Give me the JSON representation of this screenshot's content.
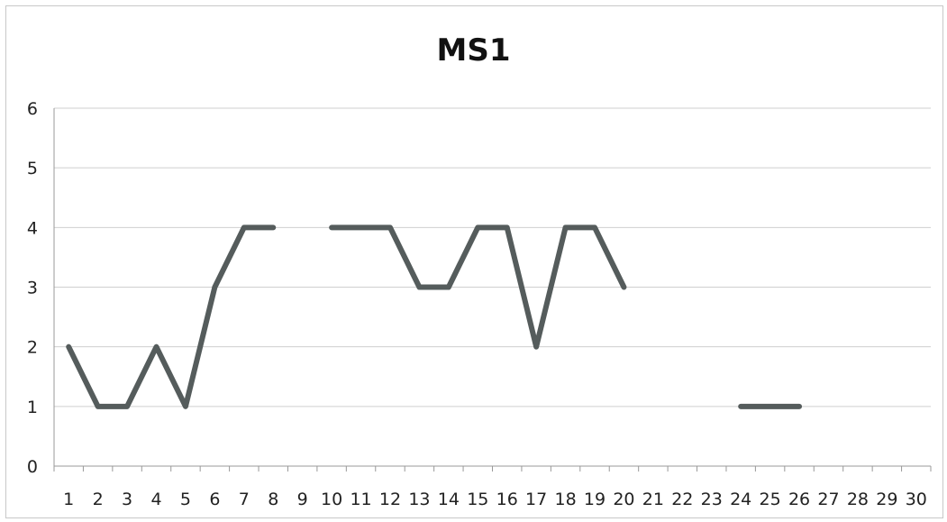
{
  "chart_data": {
    "type": "line",
    "title": "MS1",
    "xlabel": "",
    "ylabel": "",
    "x": [
      1,
      2,
      3,
      4,
      5,
      6,
      7,
      8,
      9,
      10,
      11,
      12,
      13,
      14,
      15,
      16,
      17,
      18,
      19,
      20,
      21,
      22,
      23,
      24,
      25,
      26,
      27,
      28,
      29,
      30
    ],
    "ylim": [
      0,
      6
    ],
    "yticks": [
      0,
      1,
      2,
      3,
      4,
      5,
      6
    ],
    "grid": true,
    "legend": "none",
    "series": [
      {
        "name": "",
        "color": "#555c5c",
        "values": [
          2,
          1,
          1,
          2,
          1,
          3,
          4,
          4,
          null,
          4,
          4,
          4,
          3,
          3,
          4,
          4,
          2,
          4,
          4,
          3,
          null,
          null,
          null,
          1,
          1,
          1,
          null,
          null,
          null,
          null
        ]
      }
    ]
  }
}
